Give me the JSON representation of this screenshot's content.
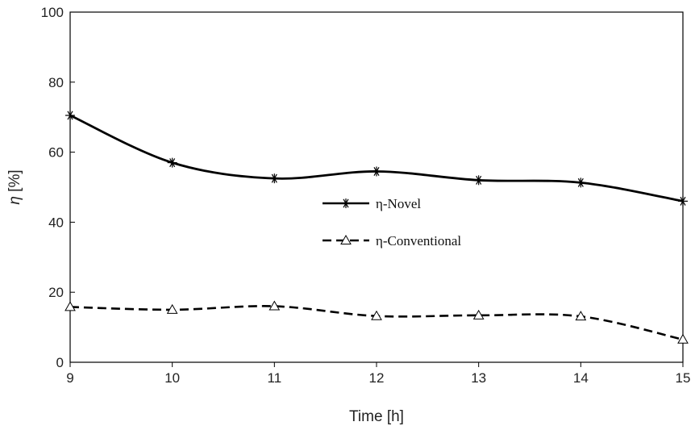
{
  "chart_data": {
    "type": "line",
    "xlabel": "Time [h]",
    "ylabel_symbol": "η",
    "ylabel_unit": "[%]",
    "x": [
      9,
      10,
      11,
      12,
      13,
      14,
      15
    ],
    "xlim": [
      9,
      15
    ],
    "ylim": [
      0,
      100
    ],
    "xticks": [
      "9",
      "10",
      "11",
      "12",
      "13",
      "14",
      "15"
    ],
    "yticks": [
      "0",
      "20",
      "40",
      "60",
      "80",
      "100"
    ],
    "grid": false,
    "legend_position": "center",
    "series": [
      {
        "name": "η-Novel",
        "values": [
          70.5,
          57,
          52.5,
          54.5,
          52,
          51.3,
          46
        ],
        "marker": "asterisk",
        "line_style": "solid",
        "color": "#000000"
      },
      {
        "name": "η-Conventional",
        "values": [
          15.8,
          15,
          16,
          13.2,
          13.4,
          13.1,
          6.5
        ],
        "marker": "triangle-open",
        "line_style": "dashed",
        "color": "#000000"
      }
    ]
  }
}
